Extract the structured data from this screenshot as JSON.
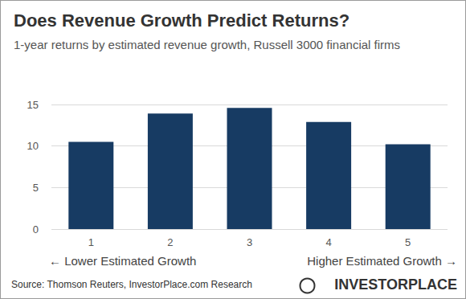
{
  "chart_data": {
    "type": "bar",
    "title": "Does Revenue Growth Predict Returns?",
    "subtitle": "1-year returns by estimated revenue growth, Russell 3000 financial firms",
    "categories": [
      "1",
      "2",
      "3",
      "4",
      "5"
    ],
    "values": [
      10.5,
      13.9,
      14.6,
      12.9,
      10.2
    ],
    "color": "#173b63",
    "ylim": [
      0,
      15
    ],
    "yticks": [
      0,
      5,
      10,
      15
    ],
    "grid": true,
    "annotations": [
      "← Lower Estimated Growth",
      "Higher Estimated Growth →",
      "Source: Thomson Reuters, InvestorPlace.com Research",
      "INVESTORPLACE"
    ]
  }
}
